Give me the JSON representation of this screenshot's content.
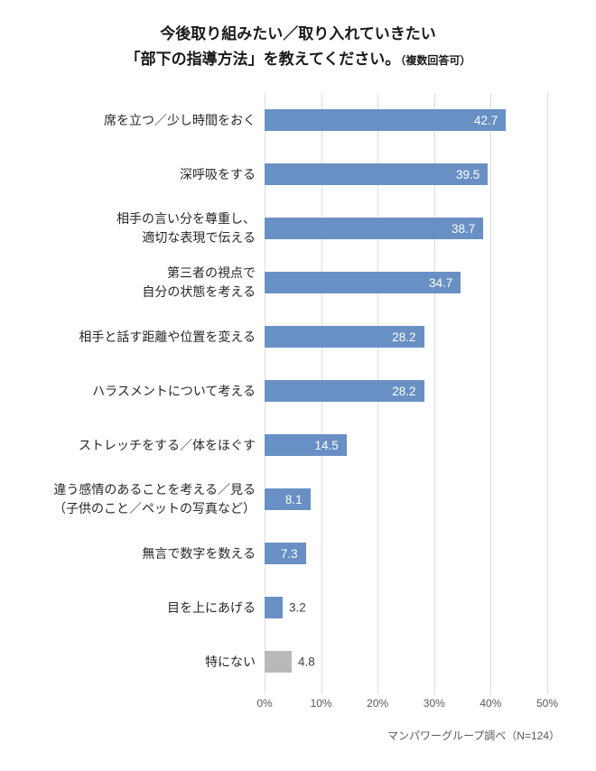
{
  "title": {
    "line1": "今後取り組みたい／取り入れていきたい",
    "line2": "「部下の指導方法」を教えてください。",
    "note": "（複数回答可）"
  },
  "chart_data": {
    "type": "bar",
    "orientation": "horizontal",
    "title": "今後取り組みたい／取り入れていきたい「部下の指導方法」を教えてください。（複数回答可）",
    "xlabel": "",
    "ylabel": "",
    "xlim": [
      0,
      50
    ],
    "grid": true,
    "x_ticks": [
      {
        "label": "0%",
        "value": 0
      },
      {
        "label": "10%",
        "value": 10
      },
      {
        "label": "20%",
        "value": 20
      },
      {
        "label": "30%",
        "value": 30
      },
      {
        "label": "40%",
        "value": 40
      },
      {
        "label": "50%",
        "value": 50
      }
    ],
    "bars": [
      {
        "label_lines": [
          "席を立つ／少し時間をおく"
        ],
        "value": 42.7,
        "value_label": "42.7",
        "color": "#6890C4",
        "value_label_position": "inside"
      },
      {
        "label_lines": [
          "深呼吸をする"
        ],
        "value": 39.5,
        "value_label": "39.5",
        "color": "#6890C4",
        "value_label_position": "inside"
      },
      {
        "label_lines": [
          "相手の言い分を尊重し、",
          "適切な表現で伝える"
        ],
        "value": 38.7,
        "value_label": "38.7",
        "color": "#6890C4",
        "value_label_position": "inside"
      },
      {
        "label_lines": [
          "第三者の視点で",
          "自分の状態を考える"
        ],
        "value": 34.7,
        "value_label": "34.7",
        "color": "#6890C4",
        "value_label_position": "inside"
      },
      {
        "label_lines": [
          "相手と話す距離や位置を変える"
        ],
        "value": 28.2,
        "value_label": "28.2",
        "color": "#6890C4",
        "value_label_position": "inside"
      },
      {
        "label_lines": [
          "ハラスメントについて考える"
        ],
        "value": 28.2,
        "value_label": "28.2",
        "color": "#6890C4",
        "value_label_position": "inside"
      },
      {
        "label_lines": [
          "ストレッチをする／体をほぐす"
        ],
        "value": 14.5,
        "value_label": "14.5",
        "color": "#6890C4",
        "value_label_position": "inside"
      },
      {
        "label_lines": [
          "違う感情のあることを考える／見る",
          "（子供のこと／ペットの写真など）"
        ],
        "value": 8.1,
        "value_label": "8.1",
        "color": "#6890C4",
        "value_label_position": "inside"
      },
      {
        "label_lines": [
          "無言で数字を数える"
        ],
        "value": 7.3,
        "value_label": "7.3",
        "color": "#6890C4",
        "value_label_position": "inside"
      },
      {
        "label_lines": [
          "目を上にあげる"
        ],
        "value": 3.2,
        "value_label": "3.2",
        "color": "#6890C4",
        "value_label_position": "outside"
      },
      {
        "label_lines": [
          "特にない"
        ],
        "value": 4.8,
        "value_label": "4.8",
        "color": "#B9B9B9",
        "value_label_position": "outside"
      }
    ]
  },
  "footer": {
    "source": "マンパワーグループ調べ（N=124）"
  },
  "colors": {
    "bar_blue": "#6890C4",
    "bar_gray": "#B9B9B9",
    "gridline": "#DCDCDC",
    "tick_label": "#595959",
    "value_inside": "#FFFFFF",
    "value_outside": "#404040",
    "category_label": "#262626"
  }
}
